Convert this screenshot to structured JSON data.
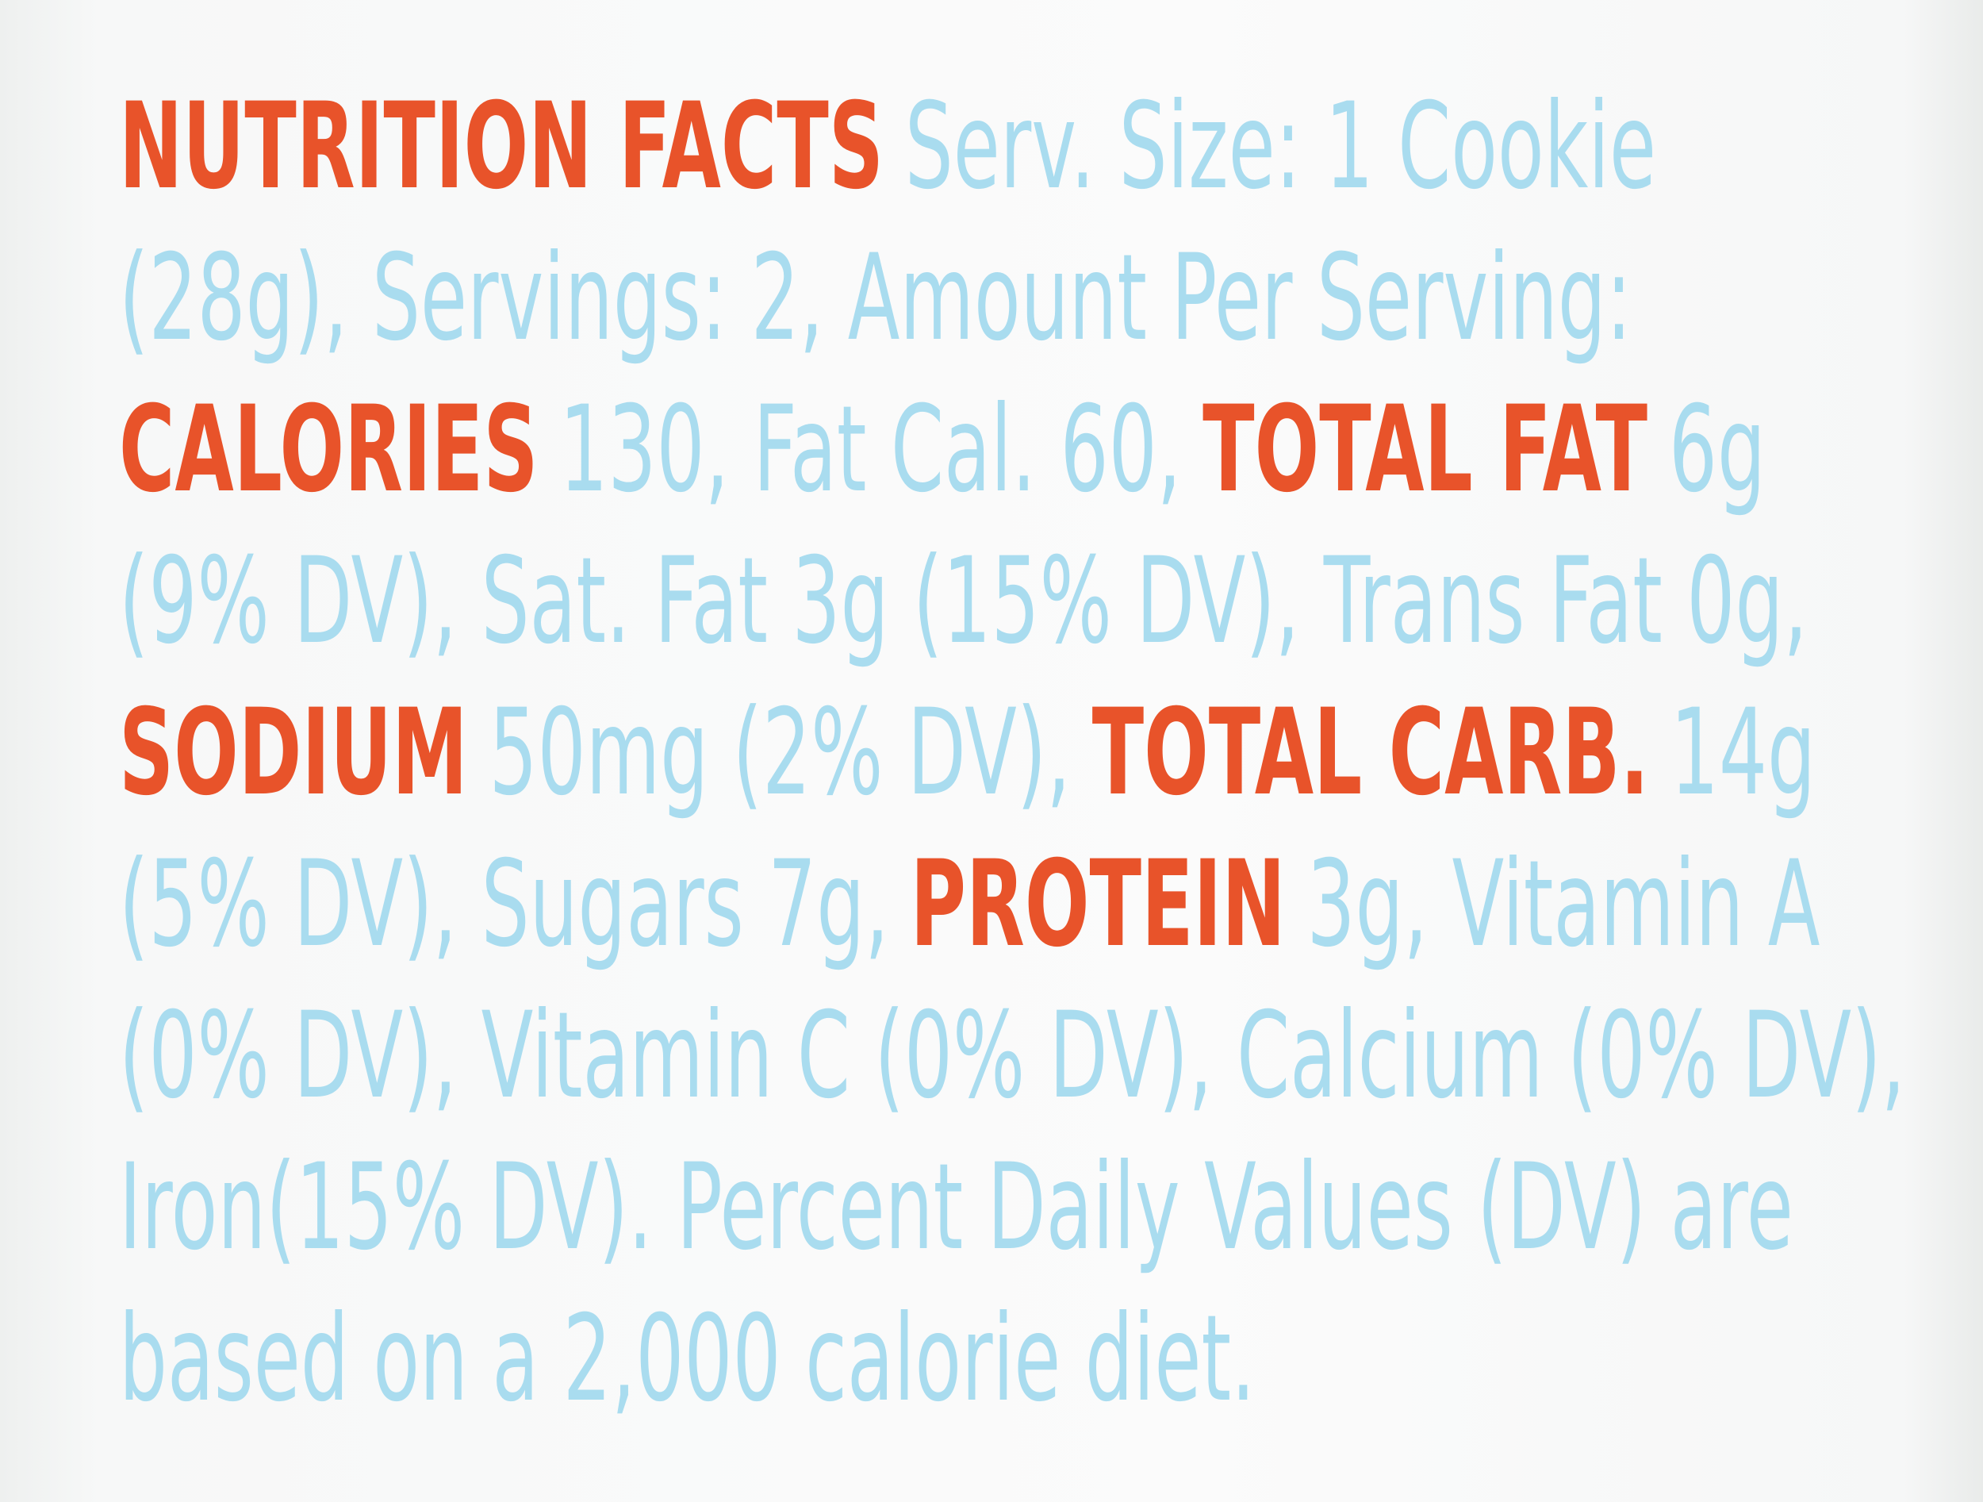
{
  "label": {
    "lines": [
      [
        {
          "text": "NUTRITION FACTS",
          "color": "#e8532a",
          "bold": true
        },
        {
          "text": "Serv. Size: 1 Cookie",
          "color": "#a9dcef"
        }
      ],
      [
        {
          "text": "(28g), Servings: 2, Amount Per Serving:",
          "color": "#a9dcef"
        }
      ],
      [
        {
          "text": "CALORIES",
          "color": "#e8532a",
          "bold": true
        },
        {
          "text": "130, Fat Cal. 60,",
          "color": "#a9dcef"
        },
        {
          "text": "TOTAL FAT",
          "color": "#e8532a",
          "bold": true
        },
        {
          "text": "6g",
          "color": "#a9dcef"
        }
      ],
      [
        {
          "text": "(9% DV), Sat. Fat 3g (15% DV), Trans Fat 0g,",
          "color": "#a9dcef"
        }
      ],
      [
        {
          "text": "SODIUM",
          "color": "#e8532a",
          "bold": true
        },
        {
          "text": "50mg (2% DV),",
          "color": "#a9dcef"
        },
        {
          "text": "TOTAL CARB.",
          "color": "#e8532a",
          "bold": true
        },
        {
          "text": "14g",
          "color": "#a9dcef"
        }
      ],
      [
        {
          "text": "(5% DV), Sugars 7g,",
          "color": "#a9dcef"
        },
        {
          "text": "PROTEIN",
          "color": "#e8532a",
          "bold": true
        },
        {
          "text": "3g, Vitamin A",
          "color": "#a9dcef"
        }
      ],
      [
        {
          "text": "(0% DV), Vitamin C (0% DV), Calcium (0% DV),",
          "color": "#a9dcef"
        }
      ],
      [
        {
          "text": "Iron(15% DV). Percent Daily Values (DV) are",
          "color": "#a9dcef"
        }
      ],
      [
        {
          "text": "based on a 2,000 calorie diet.",
          "color": "#a9dcef"
        }
      ]
    ]
  }
}
